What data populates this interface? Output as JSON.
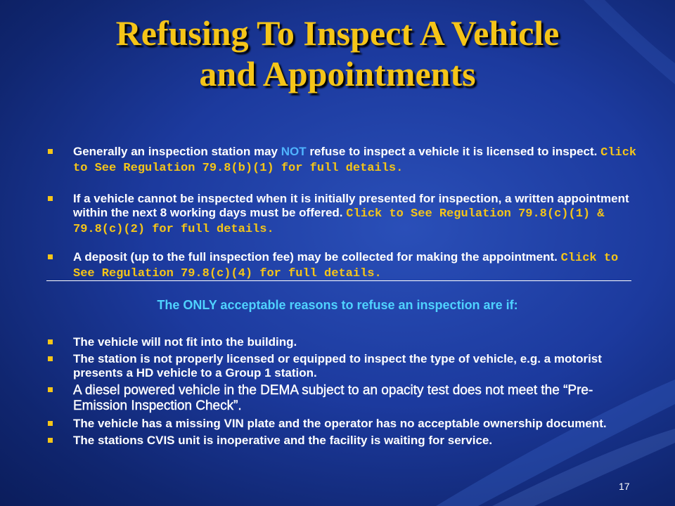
{
  "slide": {
    "title_line1": "Refusing To Inspect A Vehicle",
    "title_line2": "and Appointments",
    "page_number": "17"
  },
  "bullets_top": [
    {
      "text_a": "Generally an inspection station may ",
      "highlight": "NOT",
      "text_b": " refuse to inspect a vehicle it is licensed to inspect. ",
      "link": "Click to See Regulation 79.8(b)(1) for full details."
    },
    {
      "text_a": "If a vehicle cannot be inspected when it is initially presented for inspection, a written appointment within the next 8 working days must be offered. ",
      "link": "Click to See Regulation 79.8(c)(1) & 79.8(c)(2) for full details."
    },
    {
      "text_a": "A deposit (up to the full inspection fee) may be collected for making the appointment.  ",
      "link": "Click to See Regulation 79.8(c)(4) for full details."
    }
  ],
  "subheading": "The ONLY acceptable reasons to refuse an inspection are if:",
  "bullets_bottom": [
    "The vehicle will not fit into the building.",
    "The station is not properly licensed or equipped to inspect the type of vehicle, e.g. a motorist presents a HD vehicle to a Group 1 station.",
    "A diesel powered vehicle in the DEMA subject to an opacity test does not meet the “Pre-Emission Inspection Check”.",
    "The vehicle has a missing VIN plate and the operator has no acceptable ownership document.",
    "The stations CVIS unit is inoperative and the facility is waiting for service."
  ]
}
